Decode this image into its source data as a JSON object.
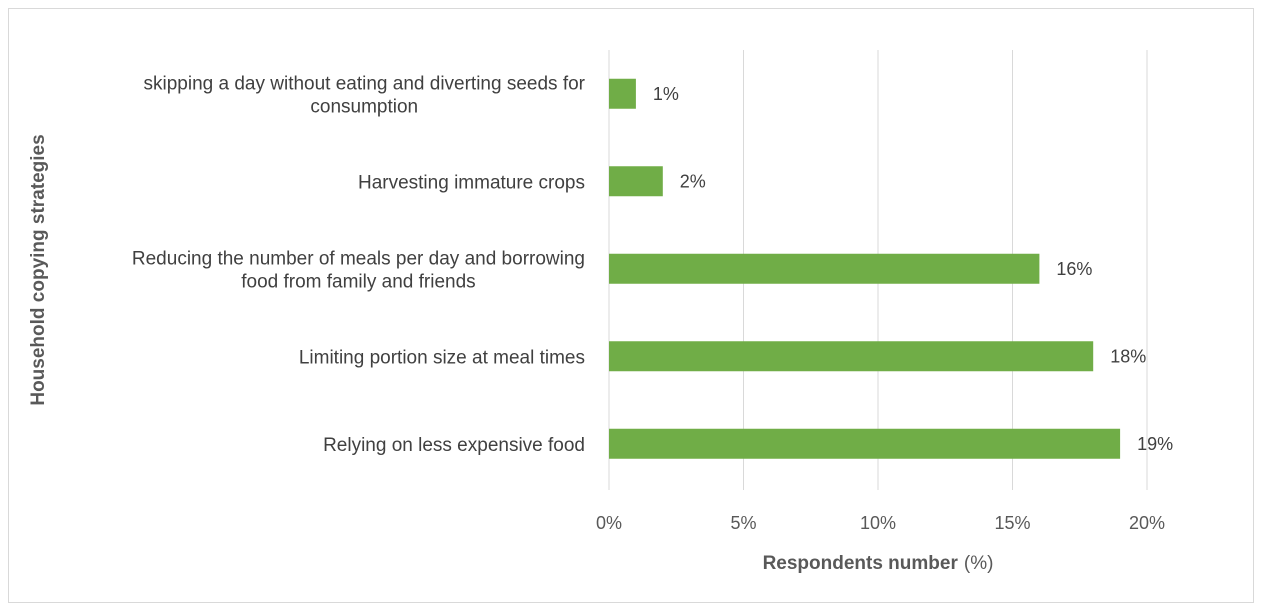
{
  "chart_data": {
    "type": "bar",
    "orientation": "horizontal",
    "xlabel": "Respondents number",
    "xlabel_unit": "(%)",
    "ylabel": "Household copying strategies",
    "categories": [
      [
        "skipping a day without eating and diverting seeds for",
        "consumption"
      ],
      [
        "Harvesting immature crops"
      ],
      [
        "Reducing the number of meals per day and borrowing",
        "food from family and friends"
      ],
      [
        "Limiting portion size at meal times"
      ],
      [
        "Relying on less expensive food"
      ]
    ],
    "values": [
      1,
      2,
      16,
      18,
      19
    ],
    "data_labels": [
      "1%",
      "2%",
      "16%",
      "18%",
      "19%"
    ],
    "xlim": [
      0,
      20
    ],
    "xticks": [
      0,
      5,
      10,
      15,
      20
    ],
    "xtick_labels": [
      "0%",
      "5%",
      "10%",
      "15%",
      "20%"
    ],
    "bar_color": "#70ad47",
    "grid": true,
    "legend": "none"
  }
}
